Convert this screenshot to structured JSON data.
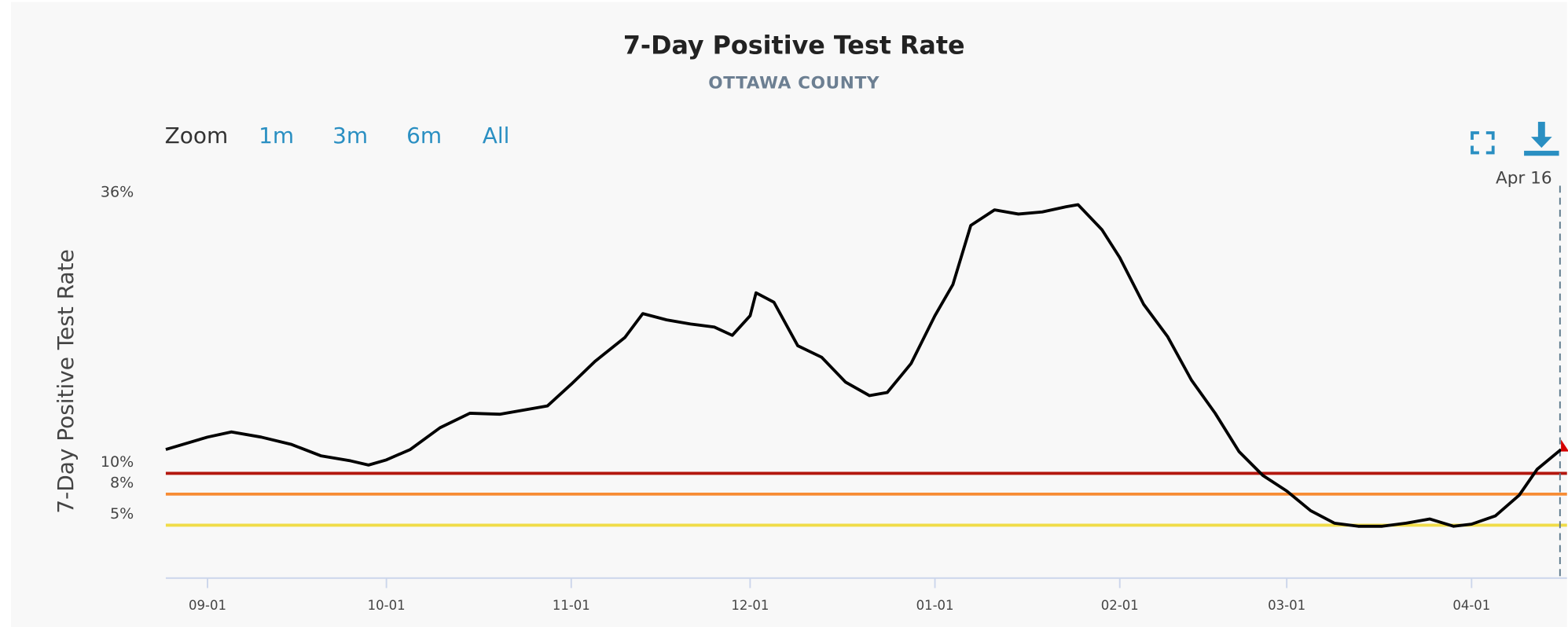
{
  "chart_data": {
    "type": "line",
    "title": "7-Day Positive Test Rate",
    "subtitle": "OTTAWA COUNTY",
    "zoom_label": "Zoom",
    "zoom_options": [
      "1m",
      "3m",
      "6m",
      "All"
    ],
    "y_label": "7-Day Positive Test Rate",
    "annotation": "Apr 16",
    "xlim": [
      "08-25",
      "04-16"
    ],
    "xticks": [
      "09-01",
      "10-01",
      "11-01",
      "12-01",
      "01-01",
      "02-01",
      "03-01",
      "04-01"
    ],
    "ylim": [
      0,
      36
    ],
    "yticks": [
      {
        "value": 36,
        "label": "36%"
      },
      {
        "value": 10,
        "label": "10%"
      },
      {
        "value": 8,
        "label": "8%"
      },
      {
        "value": 5,
        "label": "5%"
      }
    ],
    "thresholds": [
      {
        "value": 10,
        "color": "#b3170f"
      },
      {
        "value": 8,
        "color": "#f78c34"
      },
      {
        "value": 5,
        "color": "#f0dc48"
      }
    ],
    "x": [
      "08-25",
      "09-01",
      "09-05",
      "09-10",
      "09-15",
      "09-20",
      "09-25",
      "09-28",
      "10-01",
      "10-05",
      "10-10",
      "10-15",
      "10-20",
      "10-25",
      "10-28",
      "11-01",
      "11-05",
      "11-10",
      "11-13",
      "11-17",
      "11-21",
      "11-25",
      "11-28",
      "12-01",
      "12-02",
      "12-05",
      "12-09",
      "12-13",
      "12-17",
      "12-21",
      "12-24",
      "12-28",
      "01-01",
      "01-04",
      "01-07",
      "01-11",
      "01-15",
      "01-19",
      "01-23",
      "01-25",
      "01-29",
      "02-01",
      "02-05",
      "02-09",
      "02-13",
      "02-17",
      "02-21",
      "02-25",
      "03-01",
      "03-05",
      "03-09",
      "03-13",
      "03-17",
      "03-21",
      "03-25",
      "03-29",
      "04-01",
      "04-05",
      "04-09",
      "04-12",
      "04-16"
    ],
    "series": [
      {
        "name": "7-Day Positive Test Rate",
        "color": "#000000",
        "values": [
          12.3,
          13.5,
          14.0,
          13.5,
          12.8,
          11.7,
          11.2,
          10.8,
          11.3,
          12.3,
          14.4,
          15.8,
          15.7,
          16.2,
          16.5,
          18.6,
          20.8,
          23.1,
          25.4,
          24.8,
          24.4,
          24.1,
          23.3,
          25.2,
          27.4,
          26.5,
          22.3,
          21.2,
          18.8,
          17.5,
          17.8,
          20.6,
          25.2,
          28.2,
          33.9,
          35.4,
          35.0,
          35.2,
          35.7,
          35.9,
          33.5,
          30.8,
          26.3,
          23.2,
          19.0,
          15.8,
          12.1,
          9.8,
          8.3,
          6.4,
          5.2,
          4.9,
          4.9,
          5.2,
          5.6,
          4.9,
          5.1,
          5.9,
          7.9,
          10.4,
          12.3
        ]
      }
    ]
  }
}
